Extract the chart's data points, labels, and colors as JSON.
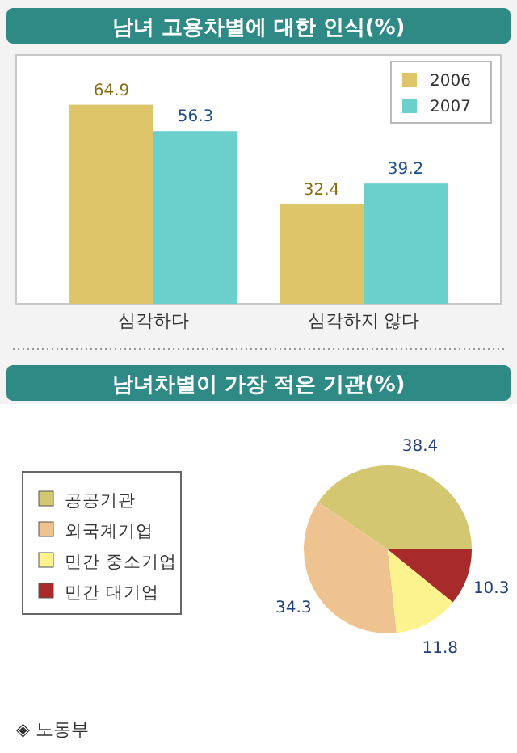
{
  "chart_data": [
    {
      "type": "bar",
      "title": "남녀 고용차별에 대한 인식(%)",
      "categories": [
        "심각하다",
        "심각하지 않다"
      ],
      "series": [
        {
          "name": "2006",
          "color": "#dfc56a",
          "values": [
            64.9,
            32.4
          ]
        },
        {
          "name": "2007",
          "color": "#6bd0cc",
          "values": [
            56.3,
            39.2
          ]
        }
      ],
      "data_labels": true,
      "legend": "top right"
    },
    {
      "type": "pie",
      "title": "남녀차별이 가장 적은 기관(%)",
      "categories": [
        "공공기관",
        "외국계기업",
        "민간 중소기업",
        "민간 대기업"
      ],
      "values": [
        38.4,
        34.3,
        11.8,
        10.3
      ],
      "colors": [
        "#d3c772",
        "#efc38f",
        "#fdf38e",
        "#a82a2a"
      ],
      "data_labels": true,
      "legend": "left",
      "annotations": [
        "◈ 노동부"
      ]
    }
  ]
}
